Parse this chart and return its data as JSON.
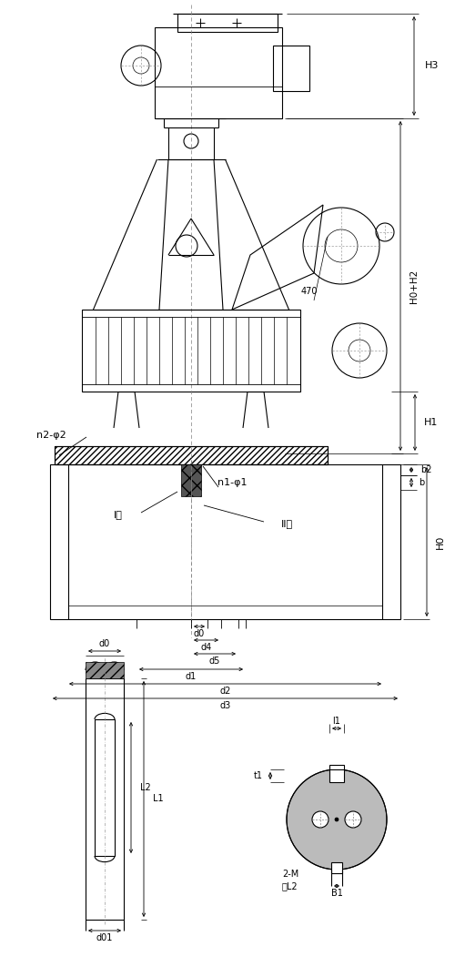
{
  "bg_color": "#ffffff",
  "line_color": "#000000",
  "labels": {
    "H3": "H3",
    "H0H2": "H0+H2",
    "H1": "H1",
    "H0": "H0",
    "n2phi2": "n2-φ2",
    "n1phi1": "n1-φ1",
    "type1": "I型",
    "type2": "II型",
    "d0": "d0",
    "d1": "d1",
    "d2": "d2",
    "d3": "d3",
    "d4": "d4",
    "d5": "d5",
    "b": "b",
    "b2": "b2",
    "470": "470",
    "d00": "d0",
    "d01": "d01",
    "L1": "L1",
    "L2": "L2",
    "t1": "t1",
    "l1": "l1",
    "B1": "B1",
    "2M": "2-M",
    "shenL2": "深L2"
  }
}
